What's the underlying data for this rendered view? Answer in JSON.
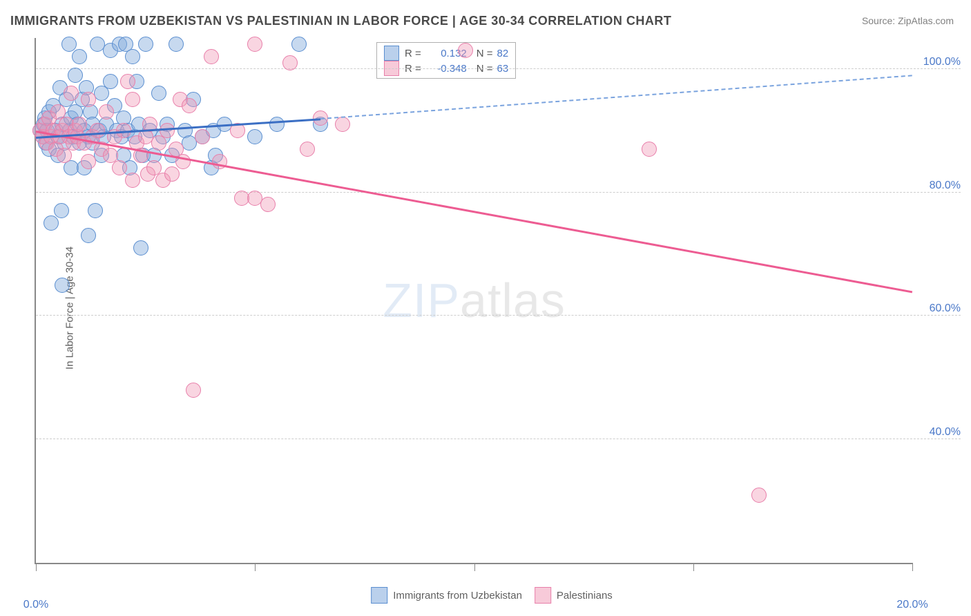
{
  "title": "IMMIGRANTS FROM UZBEKISTAN VS PALESTINIAN IN LABOR FORCE | AGE 30-34 CORRELATION CHART",
  "source": "ZipAtlas.com",
  "ylabel": "In Labor Force | Age 30-34",
  "watermark": "ZIPatlas",
  "xlim": [
    0,
    20
  ],
  "ylim": [
    20,
    105
  ],
  "xticks": [
    0,
    5,
    10,
    15,
    20
  ],
  "xtick_labels": [
    "0.0%",
    "",
    "",
    "",
    "20.0%"
  ],
  "yticks": [
    40,
    60,
    80,
    100
  ],
  "ytick_labels": [
    "40.0%",
    "60.0%",
    "80.0%",
    "100.0%"
  ],
  "grid_color": "#cccccc",
  "axis_color": "#888888",
  "background": "#ffffff",
  "marker_radius": 10,
  "series": [
    {
      "name": "Immigrants from Uzbekistan",
      "key": "blue",
      "fill": "rgba(130,170,220,0.45)",
      "stroke": "#5a8ed0",
      "R": "0.132",
      "N": "82",
      "trend": {
        "x1": 0,
        "y1": 89,
        "x2": 6.5,
        "y2": 92,
        "color": "#3b6fc4"
      },
      "trend_ext": {
        "x1": 6.5,
        "y1": 92,
        "x2": 20,
        "y2": 99,
        "color": "#7aa3de"
      },
      "points": [
        [
          0.1,
          90
        ],
        [
          0.15,
          89
        ],
        [
          0.18,
          91
        ],
        [
          0.2,
          92
        ],
        [
          0.22,
          88
        ],
        [
          0.25,
          90
        ],
        [
          0.3,
          93
        ],
        [
          0.3,
          87
        ],
        [
          0.35,
          75
        ],
        [
          0.4,
          94
        ],
        [
          0.45,
          90
        ],
        [
          0.5,
          89
        ],
        [
          0.5,
          86
        ],
        [
          0.55,
          97
        ],
        [
          0.58,
          77
        ],
        [
          0.6,
          91
        ],
        [
          0.6,
          65
        ],
        [
          0.65,
          88
        ],
        [
          0.7,
          95
        ],
        [
          0.75,
          104
        ],
        [
          0.78,
          90
        ],
        [
          0.8,
          92
        ],
        [
          0.8,
          84
        ],
        [
          0.85,
          89
        ],
        [
          0.9,
          99
        ],
        [
          0.9,
          93
        ],
        [
          0.95,
          91
        ],
        [
          1.0,
          88
        ],
        [
          1.0,
          102
        ],
        [
          1.05,
          95
        ],
        [
          1.1,
          90
        ],
        [
          1.1,
          84
        ],
        [
          1.15,
          97
        ],
        [
          1.2,
          89
        ],
        [
          1.2,
          73
        ],
        [
          1.25,
          93
        ],
        [
          1.3,
          91
        ],
        [
          1.3,
          88
        ],
        [
          1.35,
          77
        ],
        [
          1.4,
          104
        ],
        [
          1.45,
          90
        ],
        [
          1.5,
          86
        ],
        [
          1.5,
          96
        ],
        [
          1.55,
          89
        ],
        [
          1.6,
          91
        ],
        [
          1.7,
          98
        ],
        [
          1.7,
          103
        ],
        [
          1.8,
          94
        ],
        [
          1.85,
          90
        ],
        [
          1.9,
          104
        ],
        [
          1.95,
          89
        ],
        [
          2.0,
          86
        ],
        [
          2.0,
          92
        ],
        [
          2.05,
          104
        ],
        [
          2.1,
          90
        ],
        [
          2.15,
          84
        ],
        [
          2.2,
          102
        ],
        [
          2.25,
          89
        ],
        [
          2.3,
          98
        ],
        [
          2.35,
          91
        ],
        [
          2.4,
          71
        ],
        [
          2.45,
          86
        ],
        [
          2.5,
          104
        ],
        [
          2.6,
          90
        ],
        [
          2.7,
          86
        ],
        [
          2.8,
          96
        ],
        [
          2.9,
          89
        ],
        [
          3.0,
          91
        ],
        [
          3.1,
          86
        ],
        [
          3.2,
          104
        ],
        [
          3.4,
          90
        ],
        [
          3.5,
          88
        ],
        [
          3.6,
          95
        ],
        [
          3.8,
          89
        ],
        [
          4.0,
          84
        ],
        [
          4.05,
          90
        ],
        [
          4.1,
          86
        ],
        [
          4.3,
          91
        ],
        [
          5.0,
          89
        ],
        [
          5.5,
          91
        ],
        [
          6.0,
          104
        ],
        [
          6.5,
          91
        ]
      ]
    },
    {
      "name": "Palestinians",
      "key": "pink",
      "fill": "rgba(240,150,180,0.4)",
      "stroke": "#e87faa",
      "R": "-0.348",
      "N": "63",
      "trend": {
        "x1": 0,
        "y1": 90,
        "x2": 20,
        "y2": 64,
        "color": "#ed5c92"
      },
      "points": [
        [
          0.1,
          90
        ],
        [
          0.15,
          89
        ],
        [
          0.2,
          91
        ],
        [
          0.25,
          88
        ],
        [
          0.3,
          92
        ],
        [
          0.35,
          89
        ],
        [
          0.4,
          90
        ],
        [
          0.45,
          87
        ],
        [
          0.5,
          93
        ],
        [
          0.55,
          89
        ],
        [
          0.6,
          90
        ],
        [
          0.65,
          86
        ],
        [
          0.7,
          91
        ],
        [
          0.75,
          89
        ],
        [
          0.8,
          96
        ],
        [
          0.85,
          88
        ],
        [
          0.9,
          90
        ],
        [
          0.95,
          89
        ],
        [
          1.0,
          91
        ],
        [
          1.1,
          88
        ],
        [
          1.2,
          95
        ],
        [
          1.2,
          85
        ],
        [
          1.3,
          89
        ],
        [
          1.4,
          90
        ],
        [
          1.5,
          87
        ],
        [
          1.6,
          93
        ],
        [
          1.7,
          86
        ],
        [
          1.8,
          89
        ],
        [
          1.9,
          84
        ],
        [
          2.0,
          90
        ],
        [
          2.1,
          98
        ],
        [
          2.2,
          95
        ],
        [
          2.2,
          82
        ],
        [
          2.3,
          88
        ],
        [
          2.4,
          86
        ],
        [
          2.5,
          89
        ],
        [
          2.55,
          83
        ],
        [
          2.6,
          91
        ],
        [
          2.7,
          84
        ],
        [
          2.8,
          88
        ],
        [
          2.9,
          82
        ],
        [
          3.0,
          90
        ],
        [
          3.1,
          83
        ],
        [
          3.2,
          87
        ],
        [
          3.3,
          95
        ],
        [
          3.35,
          85
        ],
        [
          3.5,
          94
        ],
        [
          3.6,
          48
        ],
        [
          3.8,
          89
        ],
        [
          4.0,
          102
        ],
        [
          4.2,
          85
        ],
        [
          4.6,
          90
        ],
        [
          4.7,
          79
        ],
        [
          5.0,
          104
        ],
        [
          5.0,
          79
        ],
        [
          5.3,
          78
        ],
        [
          5.8,
          101
        ],
        [
          6.2,
          87
        ],
        [
          6.5,
          92
        ],
        [
          7.0,
          91
        ],
        [
          9.8,
          103
        ],
        [
          14.0,
          87
        ],
        [
          16.5,
          31
        ]
      ]
    }
  ]
}
